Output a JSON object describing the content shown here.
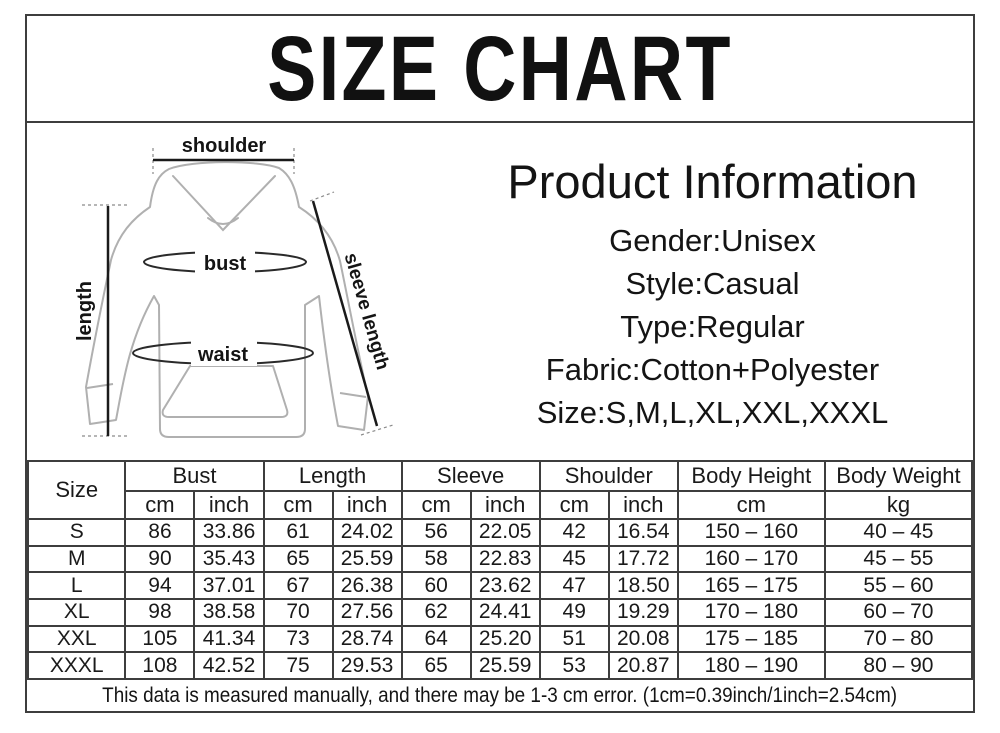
{
  "title": "SIZE CHART",
  "diagram": {
    "labels": {
      "shoulder": "shoulder",
      "length": "length",
      "bust": "bust",
      "waist": "waist",
      "sleeve_length": "sleeve length"
    }
  },
  "product_info": {
    "heading": "Product Information",
    "lines": [
      "Gender:Unisex",
      "Style:Casual",
      "Type:Regular",
      "Fabric:Cotton+Polyester",
      "Size:S,M,L,XL,XXL,XXXL"
    ]
  },
  "size_table": {
    "header": {
      "size_label": "Size",
      "groups": [
        {
          "label": "Bust",
          "subs": [
            "cm",
            "inch"
          ]
        },
        {
          "label": "Length",
          "subs": [
            "cm",
            "inch"
          ]
        },
        {
          "label": "Sleeve",
          "subs": [
            "cm",
            "inch"
          ]
        },
        {
          "label": "Shoulder",
          "subs": [
            "cm",
            "inch"
          ]
        },
        {
          "label": "Body Height",
          "subs": [
            "cm"
          ]
        },
        {
          "label": "Body Weight",
          "subs": [
            "kg"
          ]
        }
      ]
    },
    "rows": [
      {
        "size": "S",
        "cells": [
          "86",
          "33.86",
          "61",
          "24.02",
          "56",
          "22.05",
          "42",
          "16.54",
          "150 – 160",
          "40 – 45"
        ]
      },
      {
        "size": "M",
        "cells": [
          "90",
          "35.43",
          "65",
          "25.59",
          "58",
          "22.83",
          "45",
          "17.72",
          "160 – 170",
          "45 – 55"
        ]
      },
      {
        "size": "L",
        "cells": [
          "94",
          "37.01",
          "67",
          "26.38",
          "60",
          "23.62",
          "47",
          "18.50",
          "165 – 175",
          "55 – 60"
        ]
      },
      {
        "size": "XL",
        "cells": [
          "98",
          "38.58",
          "70",
          "27.56",
          "62",
          "24.41",
          "49",
          "19.29",
          "170 – 180",
          "60 – 70"
        ]
      },
      {
        "size": "XXL",
        "cells": [
          "105",
          "41.34",
          "73",
          "28.74",
          "64",
          "25.20",
          "51",
          "20.08",
          "175 – 185",
          "70 – 80"
        ]
      },
      {
        "size": "XXXL",
        "cells": [
          "108",
          "42.52",
          "75",
          "29.53",
          "65",
          "25.59",
          "53",
          "20.87",
          "180 – 190",
          "80 – 90"
        ]
      }
    ]
  },
  "footer_note": "This data is measured manually, and there may be 1-3 cm error. (1cm=0.39inch/1inch=2.54cm)"
}
